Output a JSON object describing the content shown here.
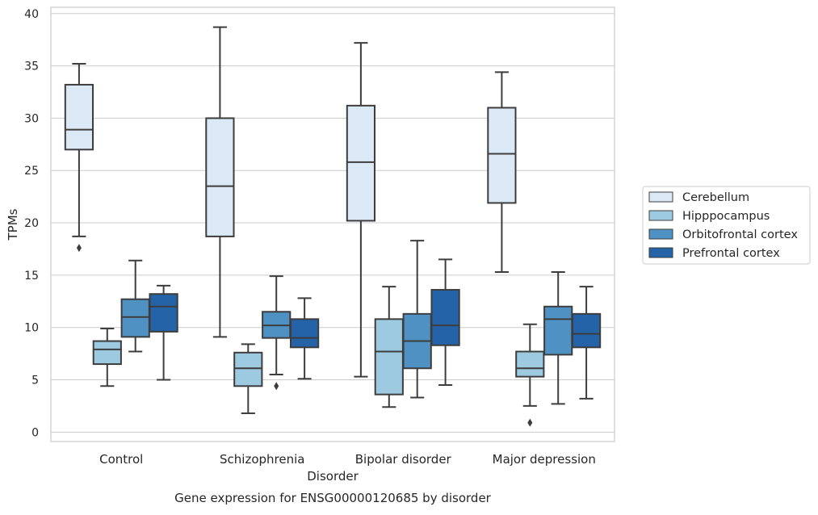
{
  "chart_data": {
    "type": "boxplot",
    "caption": "Gene expression for ENSG00000120685 by disorder",
    "xlabel": "Disorder",
    "ylabel": "TPMs",
    "ylim": [
      -0.9,
      40.6
    ],
    "yticks": [
      0,
      5,
      10,
      15,
      20,
      25,
      30,
      35,
      40
    ],
    "grid": true,
    "legend_position": "right",
    "categories": [
      "Control",
      "Schizophrenia",
      "Bipolar disorder",
      "Major depression"
    ],
    "series": [
      {
        "name": "Cerebellum",
        "color": "#dbe9f6",
        "boxes": [
          {
            "whislo": 18.7,
            "q1": 27.0,
            "med": 28.9,
            "q3": 33.2,
            "whishi": 35.2,
            "fliers": [
              17.6
            ]
          },
          {
            "whislo": 9.1,
            "q1": 18.7,
            "med": 23.5,
            "q3": 30.0,
            "whishi": 38.7,
            "fliers": []
          },
          {
            "whislo": 5.3,
            "q1": 20.2,
            "med": 25.8,
            "q3": 31.2,
            "whishi": 37.2,
            "fliers": []
          },
          {
            "whislo": 15.3,
            "q1": 21.9,
            "med": 26.6,
            "q3": 31.0,
            "whishi": 34.4,
            "fliers": []
          }
        ]
      },
      {
        "name": "Hipppocampus",
        "color": "#9ecae1",
        "boxes": [
          {
            "whislo": 4.4,
            "q1": 6.5,
            "med": 7.9,
            "q3": 8.7,
            "whishi": 9.9,
            "fliers": []
          },
          {
            "whislo": 1.8,
            "q1": 4.4,
            "med": 6.1,
            "q3": 7.6,
            "whishi": 8.4,
            "fliers": []
          },
          {
            "whislo": 2.4,
            "q1": 3.6,
            "med": 7.7,
            "q3": 10.8,
            "whishi": 13.9,
            "fliers": []
          },
          {
            "whislo": 2.5,
            "q1": 5.3,
            "med": 6.1,
            "q3": 7.7,
            "whishi": 10.3,
            "fliers": [
              0.9
            ]
          }
        ]
      },
      {
        "name": "Orbitofrontal cortex",
        "color": "#4f91c3",
        "boxes": [
          {
            "whislo": 7.7,
            "q1": 9.1,
            "med": 11.0,
            "q3": 12.7,
            "whishi": 16.4,
            "fliers": []
          },
          {
            "whislo": 5.5,
            "q1": 9.0,
            "med": 10.2,
            "q3": 11.5,
            "whishi": 14.9,
            "fliers": [
              4.4
            ]
          },
          {
            "whislo": 3.3,
            "q1": 6.1,
            "med": 8.7,
            "q3": 11.3,
            "whishi": 18.3,
            "fliers": []
          },
          {
            "whislo": 2.7,
            "q1": 7.4,
            "med": 10.8,
            "q3": 12.0,
            "whishi": 15.3,
            "fliers": []
          }
        ]
      },
      {
        "name": "Prefrontal cortex",
        "color": "#2463a8",
        "boxes": [
          {
            "whislo": 5.0,
            "q1": 9.6,
            "med": 12.0,
            "q3": 13.2,
            "whishi": 14.0,
            "fliers": []
          },
          {
            "whislo": 5.1,
            "q1": 8.1,
            "med": 9.0,
            "q3": 10.8,
            "whishi": 12.8,
            "fliers": []
          },
          {
            "whislo": 4.5,
            "q1": 8.3,
            "med": 10.2,
            "q3": 13.6,
            "whishi": 16.5,
            "fliers": []
          },
          {
            "whislo": 3.2,
            "q1": 8.1,
            "med": 9.4,
            "q3": 11.3,
            "whishi": 13.9,
            "fliers": []
          }
        ]
      }
    ]
  }
}
